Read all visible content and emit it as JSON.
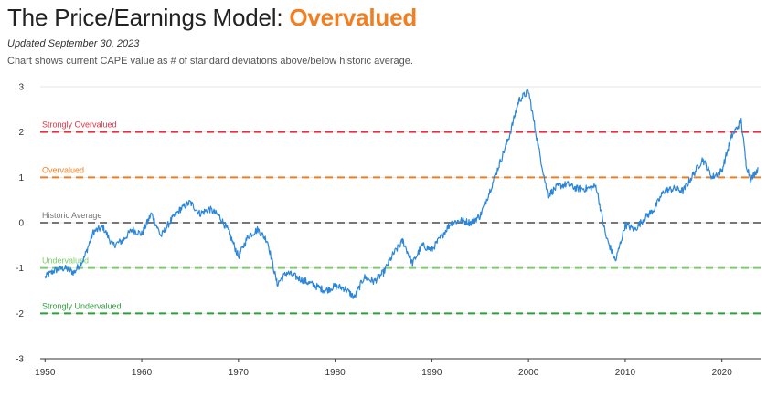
{
  "header": {
    "title_prefix": "The Price/Earnings Model: ",
    "verdict": "Overvalued",
    "verdict_color": "#f07f22",
    "updated": "Updated September 30, 2023",
    "subtitle": "Chart shows current CAPE value as # of standard deviations above/below historic average."
  },
  "chart_data": {
    "type": "line",
    "title": "The Price/Earnings Model: Overvalued",
    "xlabel": "",
    "ylabel": "",
    "xlim": [
      1949.5,
      2024
    ],
    "ylim": [
      -3,
      3
    ],
    "x_ticks": [
      1950,
      1960,
      1970,
      1980,
      1990,
      2000,
      2010,
      2020
    ],
    "y_ticks": [
      3,
      2,
      1,
      0,
      -1,
      -2,
      -3
    ],
    "reference_lines": [
      {
        "label": "Strongly Overvalued",
        "value": 2,
        "color": "#dc3545"
      },
      {
        "label": "Overvalued",
        "value": 1,
        "color": "#f07f22"
      },
      {
        "label": "Historic Average",
        "value": 0,
        "color": "#777777"
      },
      {
        "label": "Undervalued",
        "value": -1,
        "color": "#7ccf6a"
      },
      {
        "label": "Strongly Undervalued",
        "value": -2,
        "color": "#2e9e3e"
      }
    ],
    "series": [
      {
        "name": "CAPE standard deviations from historic average",
        "color": "#2b86d9",
        "points": [
          [
            1950,
            -1.2
          ],
          [
            1951,
            -1.05
          ],
          [
            1952,
            -1.0
          ],
          [
            1953,
            -1.1
          ],
          [
            1954,
            -0.8
          ],
          [
            1955,
            -0.2
          ],
          [
            1956,
            -0.1
          ],
          [
            1957,
            -0.5
          ],
          [
            1958,
            -0.4
          ],
          [
            1959,
            -0.15
          ],
          [
            1960,
            -0.25
          ],
          [
            1961,
            0.2
          ],
          [
            1962,
            -0.3
          ],
          [
            1963,
            0.05
          ],
          [
            1964,
            0.3
          ],
          [
            1965,
            0.45
          ],
          [
            1966,
            0.2
          ],
          [
            1967,
            0.3
          ],
          [
            1968,
            0.15
          ],
          [
            1969,
            -0.2
          ],
          [
            1970,
            -0.75
          ],
          [
            1971,
            -0.3
          ],
          [
            1972,
            -0.15
          ],
          [
            1973,
            -0.4
          ],
          [
            1974,
            -1.35
          ],
          [
            1975,
            -1.1
          ],
          [
            1976,
            -1.2
          ],
          [
            1977,
            -1.3
          ],
          [
            1978,
            -1.4
          ],
          [
            1979,
            -1.5
          ],
          [
            1980,
            -1.4
          ],
          [
            1981,
            -1.45
          ],
          [
            1982,
            -1.65
          ],
          [
            1983,
            -1.2
          ],
          [
            1984,
            -1.3
          ],
          [
            1985,
            -1.1
          ],
          [
            1986,
            -0.7
          ],
          [
            1987,
            -0.4
          ],
          [
            1988,
            -0.9
          ],
          [
            1989,
            -0.5
          ],
          [
            1990,
            -0.6
          ],
          [
            1991,
            -0.3
          ],
          [
            1992,
            0.0
          ],
          [
            1993,
            0.05
          ],
          [
            1994,
            0.0
          ],
          [
            1995,
            0.15
          ],
          [
            1996,
            0.7
          ],
          [
            1997,
            1.3
          ],
          [
            1998,
            1.9
          ],
          [
            1999,
            2.7
          ],
          [
            2000,
            2.9
          ],
          [
            2001,
            1.7
          ],
          [
            2002,
            0.6
          ],
          [
            2003,
            0.8
          ],
          [
            2004,
            0.85
          ],
          [
            2005,
            0.75
          ],
          [
            2006,
            0.75
          ],
          [
            2007,
            0.8
          ],
          [
            2008,
            -0.3
          ],
          [
            2009,
            -0.85
          ],
          [
            2010,
            -0.05
          ],
          [
            2011,
            -0.15
          ],
          [
            2012,
            0.1
          ],
          [
            2013,
            0.3
          ],
          [
            2014,
            0.7
          ],
          [
            2015,
            0.75
          ],
          [
            2016,
            0.7
          ],
          [
            2017,
            1.05
          ],
          [
            2018,
            1.4
          ],
          [
            2019,
            1.0
          ],
          [
            2020,
            1.15
          ],
          [
            2021,
            1.9
          ],
          [
            2022,
            2.25
          ],
          [
            2022.5,
            1.3
          ],
          [
            2023,
            0.95
          ],
          [
            2023.75,
            1.2
          ]
        ]
      }
    ]
  }
}
